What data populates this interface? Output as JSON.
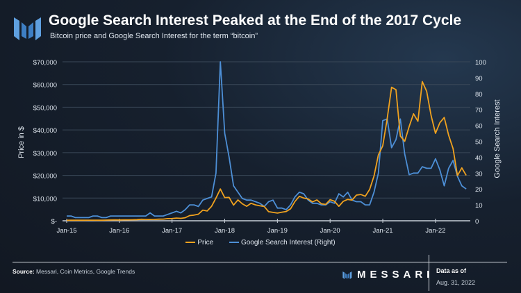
{
  "header": {
    "title": "Google Search Interest Peaked at the End of the 2017 Cycle",
    "subtitle": "Bitcoin price and Google Search Interest for the term “bitcoin”"
  },
  "footer": {
    "source_label": "Source:",
    "source": "Messari, Coin Metrics, Google Trends",
    "brand": "MESSARI",
    "data_as_of_label": "Data as of",
    "data_as_of": "Aug. 31, 2022"
  },
  "colors": {
    "price": "#f0a21f",
    "interest": "#4d8fd6",
    "background": "#16202e"
  },
  "chart_data": {
    "type": "line",
    "xlabel": "",
    "ylabel": "Price in $",
    "y2label": "Google Search Interest",
    "ylim": [
      0,
      70000
    ],
    "y2lim": [
      0,
      100
    ],
    "yticks": [
      "$-",
      "$10,000",
      "$20,000",
      "$30,000",
      "$40,000",
      "$50,000",
      "$60,000",
      "$70,000"
    ],
    "y2ticks": [
      "0",
      "10",
      "20",
      "30",
      "40",
      "50",
      "60",
      "70",
      "80",
      "90",
      "100"
    ],
    "xticks": [
      "Jan-15",
      "Jan-16",
      "Jan-17",
      "Jan-18",
      "Jan-19",
      "Jan-20",
      "Jan-21",
      "Jan-22"
    ],
    "x_start": "Jan-15",
    "x_end": "Aug-22",
    "x_frequency": "monthly",
    "grid": true,
    "legend": "bottom",
    "series": [
      {
        "name": "Price",
        "axis": "left",
        "values": [
          220,
          250,
          250,
          240,
          230,
          260,
          280,
          230,
          235,
          310,
          380,
          430,
          370,
          440,
          415,
          450,
          530,
          670,
          620,
          575,
          610,
          700,
          740,
          960,
          970,
          1190,
          1080,
          1350,
          2300,
          2500,
          2900,
          4700,
          4300,
          6400,
          10000,
          14000,
          10200,
          10300,
          6900,
          9200,
          7500,
          6400,
          7700,
          7000,
          6600,
          6300,
          4000,
          3700,
          3400,
          3800,
          4100,
          5300,
          8500,
          10800,
          10000,
          9600,
          8300,
          9200,
          7500,
          7200,
          9300,
          8600,
          6400,
          8600,
          9400,
          9100,
          11300,
          11600,
          10800,
          13800,
          19700,
          29000,
          33000,
          45000,
          58800,
          57700,
          37300,
          35000,
          41500,
          47100,
          43800,
          61300,
          57000,
          46300,
          38500,
          43200,
          45500,
          37700,
          31800,
          19900,
          23300,
          20000
        ]
      },
      {
        "name": "Google Search Interest (Right)",
        "axis": "right",
        "values": [
          3,
          3,
          2,
          2,
          2,
          2,
          3,
          3,
          2,
          2,
          3,
          3,
          3,
          3,
          3,
          3,
          3,
          3,
          3,
          5,
          3,
          3,
          3,
          4,
          5,
          6,
          5,
          7,
          10,
          10,
          9,
          13,
          14,
          15,
          30,
          100,
          55,
          40,
          22,
          18,
          14,
          13,
          13,
          12,
          11,
          9,
          12,
          13,
          8,
          8,
          7,
          10,
          15,
          18,
          17,
          13,
          11,
          11,
          10,
          10,
          12,
          11,
          17,
          15,
          18,
          13,
          12,
          12,
          10,
          10,
          18,
          30,
          63,
          64,
          46,
          51,
          64,
          42,
          29,
          30,
          30,
          34,
          33,
          33,
          39,
          32,
          22,
          33,
          38,
          28,
          22,
          20
        ]
      }
    ]
  }
}
